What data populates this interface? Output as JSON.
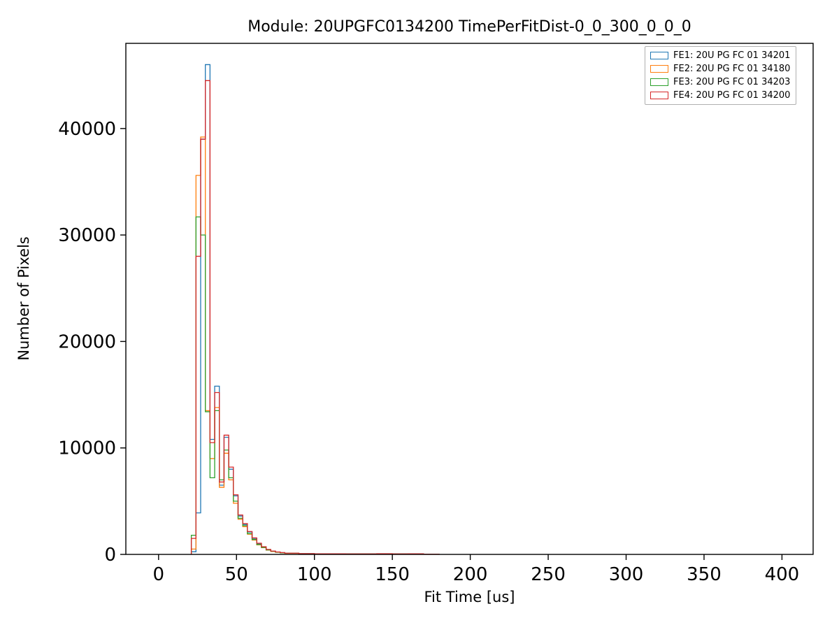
{
  "chart_data": {
    "type": "step-histogram",
    "title": "Module: 20UPGFC0134200 TimePerFitDist-0_0_300_0_0_0",
    "xlabel": "Fit Time [us]",
    "ylabel": "Number of Pixels",
    "xlim": [
      -21,
      420
    ],
    "ylim": [
      0,
      48000
    ],
    "xticks": [
      0,
      50,
      100,
      150,
      200,
      250,
      300,
      350,
      400
    ],
    "yticks": [
      0,
      10000,
      20000,
      30000,
      40000
    ],
    "grid": false,
    "legend_position": "upper right",
    "axis_color": "#000000",
    "bin_edges": [
      21,
      24,
      27,
      30,
      33,
      36,
      39,
      42,
      45,
      48,
      51,
      54,
      57,
      60,
      63,
      66,
      69,
      72,
      75,
      78,
      81,
      90,
      100,
      120,
      140,
      150,
      160,
      170,
      180
    ],
    "series": [
      {
        "name": "FE1: 20U PG FC 01 34201",
        "color": "#1f77b4",
        "counts": [
          250,
          3900,
          39000,
          46000,
          10800,
          15800,
          6500,
          11000,
          8000,
          5500,
          3600,
          2800,
          2100,
          1500,
          1000,
          700,
          450,
          300,
          220,
          160,
          110,
          70,
          50,
          40,
          60,
          40,
          50,
          20
        ]
      },
      {
        "name": "FE2: 20U PG FC 01 34180",
        "color": "#ff7f0e",
        "counts": [
          500,
          35600,
          39200,
          13500,
          9000,
          13800,
          6300,
          9500,
          7000,
          4800,
          3300,
          2600,
          1900,
          1350,
          900,
          630,
          400,
          270,
          200,
          145,
          100,
          60,
          45,
          35,
          55,
          35,
          45,
          15
        ]
      },
      {
        "name": "FE3: 20U PG FC 01 34203",
        "color": "#2ca02c",
        "counts": [
          1800,
          31700,
          30000,
          13400,
          7200,
          13500,
          7000,
          9800,
          7200,
          5000,
          3400,
          2700,
          1950,
          1400,
          930,
          650,
          420,
          285,
          210,
          150,
          105,
          65,
          48,
          38,
          58,
          38,
          48,
          18
        ]
      },
      {
        "name": "FE4: 20U PG FC 01 34200",
        "color": "#d62728",
        "counts": [
          1500,
          28000,
          39000,
          44500,
          10500,
          15200,
          6800,
          11200,
          8200,
          5600,
          3700,
          2900,
          2150,
          1550,
          1050,
          720,
          470,
          310,
          230,
          170,
          115,
          75,
          55,
          45,
          65,
          45,
          55,
          25
        ]
      }
    ]
  }
}
